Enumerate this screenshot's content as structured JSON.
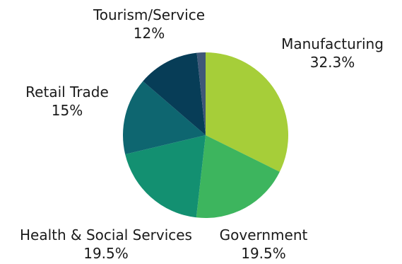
{
  "chart_data": {
    "type": "pie",
    "title": "",
    "slices": [
      {
        "label": "Manufacturing",
        "value_label": "32.3%",
        "value": 32.3,
        "color": "#a6ce39"
      },
      {
        "label": "Government",
        "value_label": "19.5%",
        "value": 19.5,
        "color": "#3db55e"
      },
      {
        "label": "Health & Social Services",
        "value_label": "19.5%",
        "value": 19.5,
        "color": "#139071"
      },
      {
        "label": "Retail Trade",
        "value_label": "15%",
        "value": 15,
        "color": "#0e6670"
      },
      {
        "label": "Tourism/Service",
        "value_label": "12%",
        "value": 12,
        "color": "#073d57"
      },
      {
        "label": "",
        "value_label": "",
        "value": 1.7,
        "color": "#3f5878"
      }
    ],
    "start_angle_deg": 0,
    "direction": "clockwise",
    "legend": "none"
  }
}
